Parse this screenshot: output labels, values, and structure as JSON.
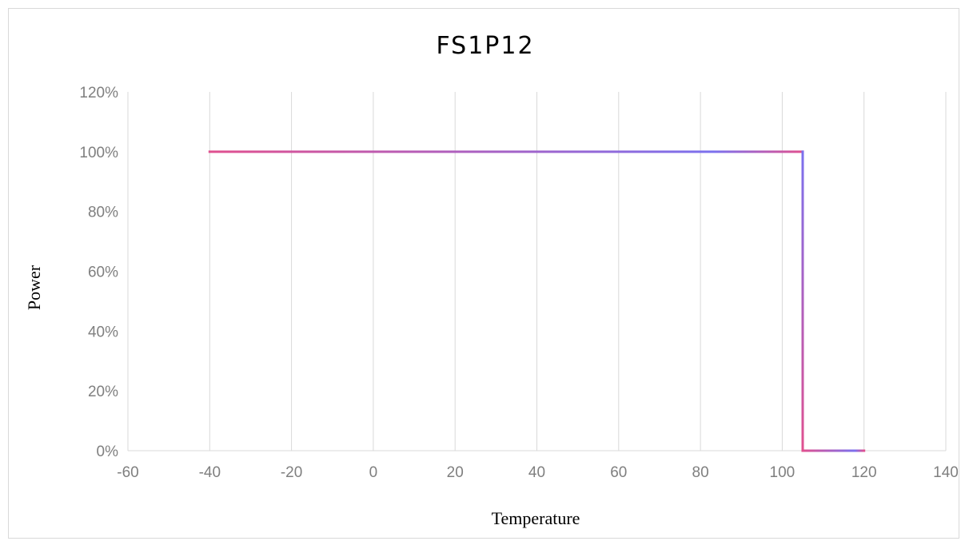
{
  "chart_data": {
    "type": "line",
    "title": "FS1P12",
    "xlabel": "Temperature",
    "ylabel": "Power",
    "xlim": [
      -60,
      140
    ],
    "ylim": [
      0,
      1.2
    ],
    "x_ticks": [
      "-60",
      "-40",
      "-20",
      "0",
      "20",
      "40",
      "60",
      "80",
      "100",
      "120",
      "140"
    ],
    "y_ticks": [
      "0%",
      "20%",
      "40%",
      "60%",
      "80%",
      "100%",
      "120%"
    ],
    "grid": "vertical",
    "legend": "none",
    "series": [
      {
        "x": [
          -40,
          105,
          105,
          120
        ],
        "y": [
          1.0,
          1.0,
          0.0,
          0.0
        ],
        "gradient": [
          "#e0508f",
          "#7b70ee",
          "#e0508f"
        ]
      }
    ]
  }
}
